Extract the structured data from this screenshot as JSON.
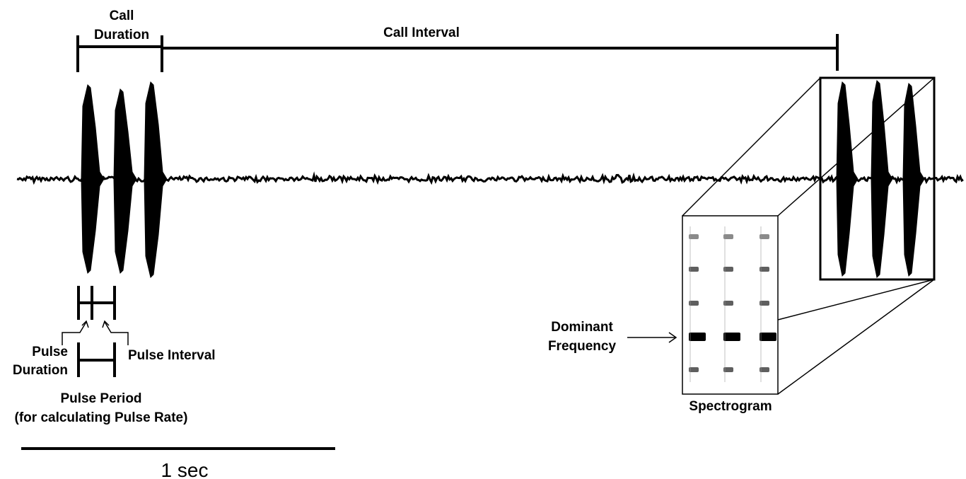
{
  "labels": {
    "call_duration_line1": "Call",
    "call_duration_line2": "Duration",
    "call_interval": "Call Interval",
    "pulse_duration_line1": "Pulse",
    "pulse_duration_line2": "Duration",
    "pulse_interval": "Pulse Interval",
    "pulse_period_line1": "Pulse Period",
    "pulse_period_line2": "(for calculating Pulse Rate)",
    "dominant_line1": "Dominant",
    "dominant_line2": "Frequency",
    "spectrogram": "Spectrogram",
    "scale_bar": "1 sec"
  },
  "colors": {
    "ink": "#000000",
    "background": "#ffffff",
    "spectro_band": "#2a2a2a",
    "spectro_dominant": "#000000"
  }
}
